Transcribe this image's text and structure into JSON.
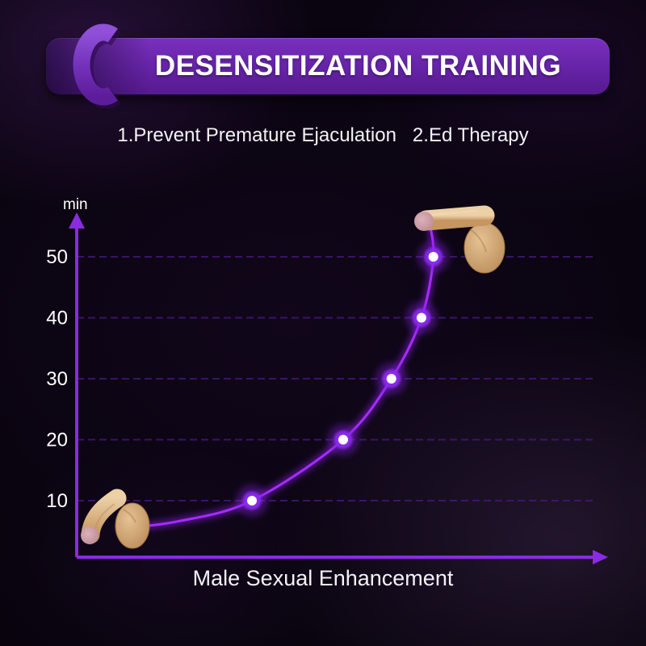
{
  "banner": {
    "title": "DESENSITIZATION TRAINING",
    "color": "#6825ab",
    "ribbon_icon": "c-ring-buckle-icon"
  },
  "subtitle": "1.Prevent Premature Ejaculation   2.Ed Therapy",
  "chart_data": {
    "type": "line",
    "title": "DESENSITIZATION TRAINING",
    "xlabel": "Male Sexual Enhancement",
    "ylabel": "min",
    "yticks": [
      10,
      20,
      30,
      40,
      50
    ],
    "ylim": [
      0,
      58
    ],
    "xlim_note": "x axis has no numeric ticks; x given as fraction 0-1 of axis length",
    "grid": true,
    "legend": false,
    "series": [
      {
        "name": "training-duration-curve",
        "color": "#a62bff",
        "points": [
          {
            "x": 0.078,
            "y": 5.4,
            "marker": false
          },
          {
            "x": 0.195,
            "y": 6.6,
            "marker": false
          },
          {
            "x": 0.338,
            "y": 10,
            "marker": true
          },
          {
            "x": 0.514,
            "y": 20,
            "marker": true
          },
          {
            "x": 0.607,
            "y": 30,
            "marker": true
          },
          {
            "x": 0.665,
            "y": 40,
            "marker": true
          },
          {
            "x": 0.688,
            "y": 50,
            "marker": true
          },
          {
            "x": 0.679,
            "y": 56.1,
            "marker": false
          }
        ]
      }
    ],
    "annotations": [
      {
        "icon": "flaccid-anatomy-illustration",
        "position": "curve-start"
      },
      {
        "icon": "erect-anatomy-illustration",
        "position": "curve-end"
      }
    ]
  },
  "colors": {
    "axis": "#8a2be2",
    "grid": "#45187a",
    "curve": "#a62bff",
    "marker_core": "#ffffff",
    "marker_glow": "#8d2cf0",
    "banner": "#6825ab",
    "background": "#0a0410",
    "text": "#ffffff"
  }
}
